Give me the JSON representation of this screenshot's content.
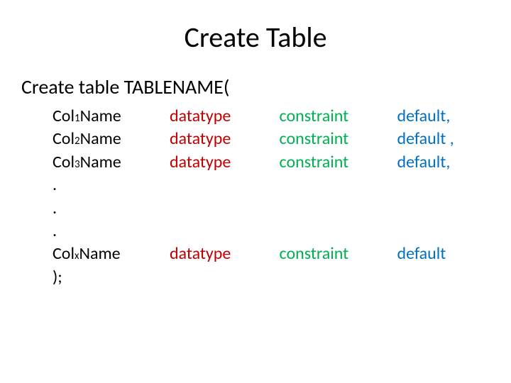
{
  "title": "Create Table",
  "intro": "Create table TABLENAME(",
  "colors": {
    "colname": "#000000",
    "datatype": "#c00000",
    "constraint": "#00b050",
    "default": "#0070c0",
    "background": "#ffffff"
  },
  "fonts": {
    "title_size_pt": 40,
    "intro_size_pt": 28,
    "body_size_pt": 24,
    "subscript_size_pt": 15
  },
  "rows": [
    {
      "col_prefix": "Col",
      "col_sub": "1",
      "col_suffix": "Name",
      "datatype": "datatype",
      "constraint": "constraint",
      "default": "default,"
    },
    {
      "col_prefix": "Col",
      "col_sub": "2",
      "col_suffix": "Name",
      "datatype": "datatype",
      "constraint": "constraint",
      "default": "default ,"
    },
    {
      "col_prefix": "Col",
      "col_sub": "3",
      "col_suffix": "Name",
      "datatype": "datatype",
      "constraint": "constraint",
      "default": "default,"
    }
  ],
  "dots": [
    ".",
    ".",
    "."
  ],
  "last_row": {
    "col_prefix": "Col",
    "col_sub": "x",
    "col_suffix": "Name",
    "datatype": "datatype",
    "constraint": "constraint",
    "default": "default"
  },
  "closing": ");"
}
